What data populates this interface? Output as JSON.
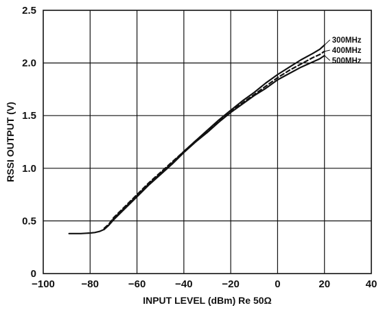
{
  "chart_data": {
    "type": "line",
    "title": "",
    "xlabel": "INPUT LEVEL (dBm) Re 50Ω",
    "ylabel": "RSSI OUTPUT (V)",
    "xlim": [
      -100,
      40
    ],
    "ylim": [
      0,
      2.5
    ],
    "xticks": [
      -100,
      -80,
      -60,
      -40,
      -20,
      0,
      20,
      40
    ],
    "yticks": [
      0,
      0.5,
      1.0,
      1.5,
      2.0,
      2.5
    ],
    "xtick_labels": [
      "−100",
      "−80",
      "−60",
      "−40",
      "−20",
      "0",
      "20",
      "40"
    ],
    "ytick_labels": [
      "0",
      "0.5",
      "1.0",
      "1.5",
      "2.0",
      "2.5"
    ],
    "grid": true,
    "legend": "right-end labels",
    "series": [
      {
        "name": "300MHz",
        "style": "solid",
        "color": "#111111",
        "x": [
          -89,
          -84,
          -80,
          -78,
          -76,
          -74,
          -72,
          -70,
          -65,
          -60,
          -55,
          -50,
          -45,
          -40,
          -35,
          -30,
          -25,
          -20,
          -15,
          -10,
          -5,
          0,
          5,
          10,
          15,
          18,
          20
        ],
        "y": [
          0.38,
          0.38,
          0.385,
          0.39,
          0.4,
          0.42,
          0.46,
          0.52,
          0.63,
          0.74,
          0.85,
          0.95,
          1.05,
          1.16,
          1.26,
          1.36,
          1.46,
          1.55,
          1.64,
          1.72,
          1.81,
          1.89,
          1.96,
          2.03,
          2.09,
          2.13,
          2.17
        ]
      },
      {
        "name": "400MHz",
        "style": "dashed",
        "color": "#111111",
        "x": [
          -74,
          -72,
          -70,
          -65,
          -60,
          -55,
          -50,
          -45,
          -40,
          -35,
          -30,
          -25,
          -20,
          -15,
          -10,
          -5,
          0,
          5,
          10,
          15,
          18,
          20
        ],
        "y": [
          0.43,
          0.47,
          0.53,
          0.64,
          0.75,
          0.86,
          0.96,
          1.06,
          1.16,
          1.26,
          1.35,
          1.45,
          1.54,
          1.62,
          1.7,
          1.78,
          1.86,
          1.93,
          1.99,
          2.05,
          2.08,
          2.11
        ]
      },
      {
        "name": "500MHz",
        "style": "solid",
        "color": "#111111",
        "x": [
          -74,
          -72,
          -70,
          -65,
          -60,
          -55,
          -50,
          -45,
          -40,
          -35,
          -30,
          -25,
          -20,
          -15,
          -10,
          -5,
          0,
          5,
          10,
          15,
          18,
          20
        ],
        "y": [
          0.42,
          0.46,
          0.51,
          0.62,
          0.73,
          0.84,
          0.94,
          1.04,
          1.15,
          1.25,
          1.34,
          1.44,
          1.53,
          1.61,
          1.69,
          1.76,
          1.84,
          1.9,
          1.96,
          2.01,
          2.04,
          2.07
        ]
      }
    ]
  }
}
